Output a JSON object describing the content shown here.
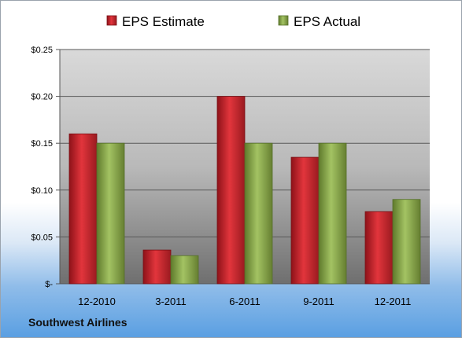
{
  "chart_data": {
    "type": "bar",
    "categories": [
      "12-2010",
      "3-2011",
      "6-2011",
      "9-2011",
      "12-2011"
    ],
    "series": [
      {
        "name": "EPS Estimate",
        "values": [
          0.16,
          0.036,
          0.2,
          0.135,
          0.077
        ],
        "color": "#c1272d"
      },
      {
        "name": "EPS Actual",
        "values": [
          0.15,
          0.03,
          0.15,
          0.15,
          0.09
        ],
        "color": "#8fac4f"
      }
    ],
    "ylim": [
      0,
      0.25
    ],
    "yticks": [
      0,
      0.05,
      0.1,
      0.15,
      0.2,
      0.25
    ],
    "ytick_labels": [
      "$-",
      "$0.05",
      "$0.10",
      "$0.15",
      "$0.20",
      "$0.25"
    ],
    "grid": true,
    "legend": "top-center"
  },
  "footer": {
    "company": "Southwest Airlines"
  }
}
